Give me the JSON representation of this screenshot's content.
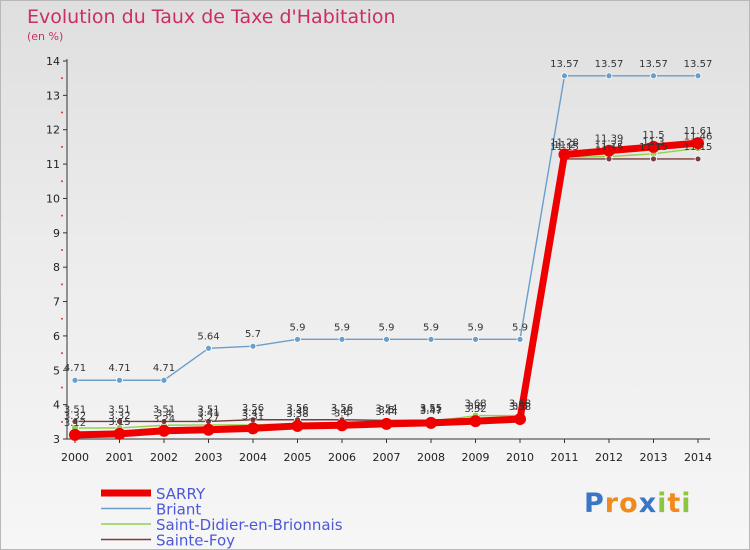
{
  "chart": {
    "title": "Evolution du Taux de Taxe d'Habitation",
    "unit_label": "(en %)"
  },
  "chart_data": {
    "type": "line",
    "title": "Evolution du Taux de Taxe d'Habitation",
    "ylabel": "(en %)",
    "xlabel": "",
    "x": [
      "2000",
      "2001",
      "2002",
      "2003",
      "2004",
      "2005",
      "2006",
      "2007",
      "2008",
      "2009",
      "2010",
      "2011",
      "2012",
      "2013",
      "2014"
    ],
    "ylim": [
      3,
      14
    ],
    "yticks": [
      3,
      4,
      5,
      6,
      7,
      8,
      9,
      10,
      11,
      12,
      13,
      14
    ],
    "grid": false,
    "legend_position": "bottom-left",
    "series": [
      {
        "name": "SARRY",
        "color": "#ee0000",
        "values": [
          3.12,
          3.15,
          3.24,
          3.27,
          3.31,
          3.38,
          3.4,
          3.44,
          3.47,
          3.52,
          3.58,
          11.28,
          11.39,
          11.5,
          11.61
        ],
        "labels": [
          "3.12",
          "3.15",
          "3.24",
          "3.27",
          "3.31",
          "3.38",
          "3.4",
          "3.44",
          "3.47",
          "3.52",
          "3.58",
          "11.28",
          "11.39",
          "11.5",
          "11.61"
        ]
      },
      {
        "name": "Briant",
        "color": "#6a9ecb",
        "values": [
          4.71,
          4.71,
          4.71,
          5.64,
          5.7,
          5.9,
          5.9,
          5.9,
          5.9,
          5.9,
          5.9,
          13.57,
          13.57,
          13.57,
          13.57
        ],
        "labels": [
          "4.71",
          "4.71",
          "4.71",
          "5.64",
          "5.7",
          "5.9",
          "5.9",
          "5.9",
          "5.9",
          "5.9",
          "5.9",
          "13.57",
          "13.57",
          "13.57",
          "13.57"
        ]
      },
      {
        "name": "Saint-Didier-en-Brionnais",
        "color": "#8fd14f",
        "values": [
          3.32,
          3.32,
          3.4,
          3.41,
          3.41,
          3.45,
          3.45,
          3.5,
          3.51,
          3.68,
          3.68,
          11.2,
          11.22,
          11.3,
          11.46
        ],
        "labels": [
          "3.32",
          "3.32",
          "3.4",
          "3.41",
          "3.41",
          "3.45",
          "3.45",
          "3.5",
          "3.51",
          "3.68",
          "3.68",
          "11.2",
          "11.22",
          "11.3",
          "11.46"
        ]
      },
      {
        "name": "Sainte-Foy",
        "color": "#7a3d3d",
        "values": [
          3.51,
          3.51,
          3.51,
          3.51,
          3.56,
          3.56,
          3.56,
          3.54,
          3.55,
          3.6,
          3.6,
          11.15,
          11.15,
          11.15,
          11.15
        ],
        "labels": [
          "3.51",
          "3.51",
          "3.51",
          "3.51",
          "3.56",
          "3.56",
          "3.56",
          "3.54",
          "3.55",
          "3.6",
          "3.6",
          "11.15",
          "11.15",
          "11.15",
          "11.15"
        ]
      }
    ]
  },
  "logo": {
    "letters": [
      "P",
      "r",
      "o",
      "x",
      "i",
      "t",
      "i"
    ],
    "colors": [
      "#3a76c4",
      "#f08a1c",
      "#f08a1c",
      "#3a76c4",
      "#8cc63f",
      "#f08a1c",
      "#8cc63f"
    ]
  }
}
